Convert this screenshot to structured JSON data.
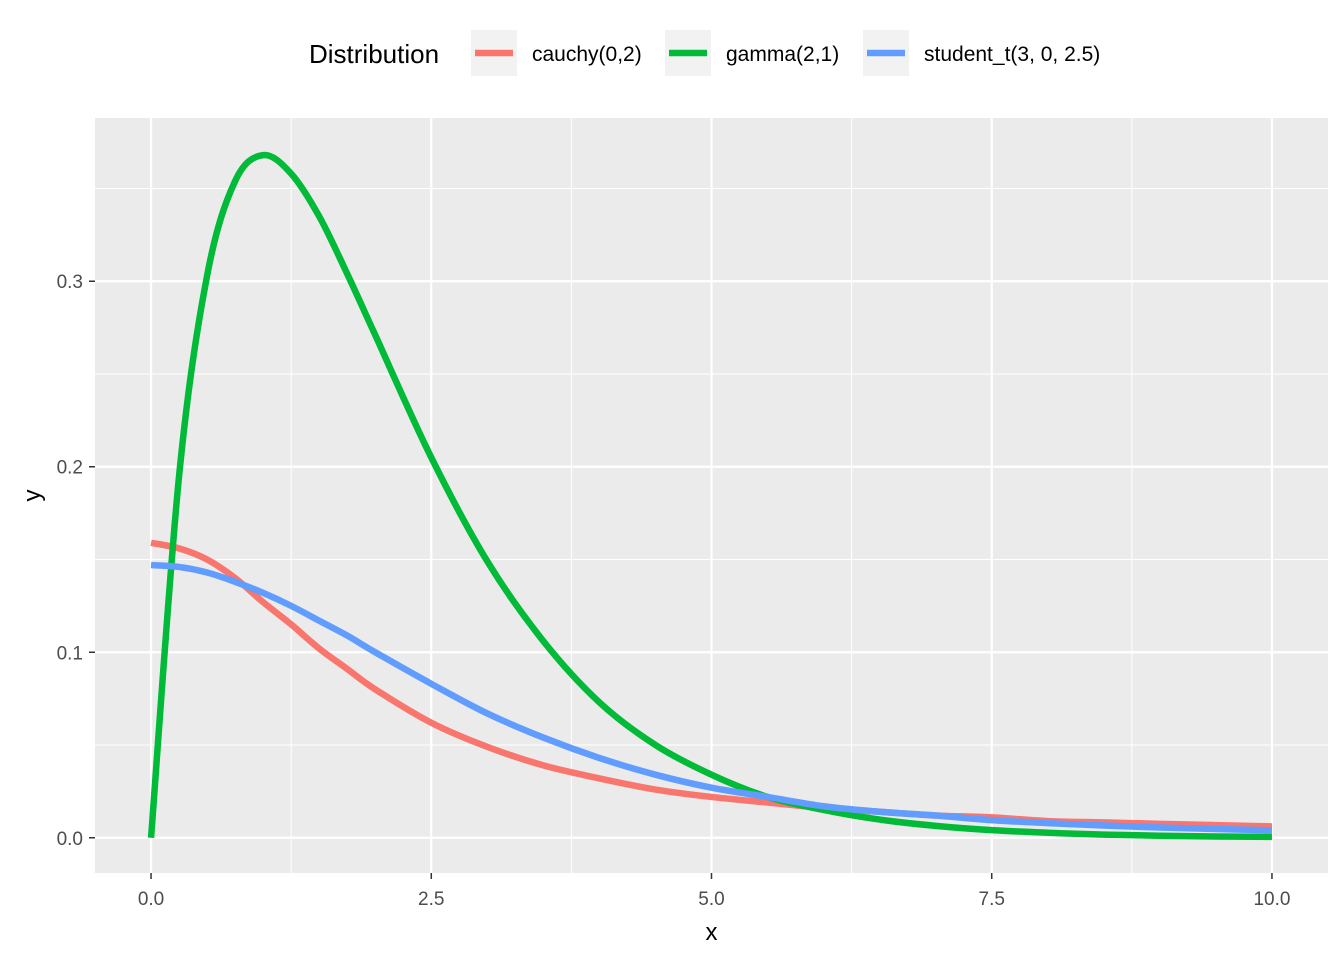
{
  "chart_data": {
    "type": "line",
    "title": "",
    "xlabel": "x",
    "ylabel": "y",
    "xlim": [
      -0.5,
      10.5
    ],
    "ylim": [
      -0.019,
      0.388
    ],
    "x_ticks": [
      0,
      2.5,
      5,
      7.5,
      10
    ],
    "x_tick_labels": [
      "0.0",
      "2.5",
      "5.0",
      "7.5",
      "10.0"
    ],
    "y_ticks": [
      0,
      0.1,
      0.2,
      0.3
    ],
    "y_tick_labels": [
      "0.0",
      "0.1",
      "0.2",
      "0.3"
    ],
    "grid": true,
    "legend": {
      "title": "Distribution",
      "position": "top"
    },
    "x": [
      0,
      0.25,
      0.5,
      0.75,
      1,
      1.25,
      1.5,
      1.75,
      2,
      2.5,
      3,
      3.5,
      4,
      4.5,
      5,
      5.5,
      6,
      6.5,
      7,
      7.5,
      8,
      8.5,
      9,
      9.5,
      10
    ],
    "series": [
      {
        "name": "cauchy(0,2)",
        "color": "#F8766D",
        "values": [
          0.159,
          0.156,
          0.15,
          0.14,
          0.127,
          0.115,
          0.102,
          0.091,
          0.08,
          0.062,
          0.049,
          0.039,
          0.032,
          0.026,
          0.022,
          0.019,
          0.016,
          0.014,
          0.012,
          0.011,
          0.009,
          0.0083,
          0.0075,
          0.0068,
          0.0061
        ]
      },
      {
        "name": "gamma(2,1)",
        "color": "#00BA38",
        "values": [
          0,
          0.195,
          0.303,
          0.354,
          0.368,
          0.358,
          0.335,
          0.304,
          0.271,
          0.205,
          0.149,
          0.106,
          0.073,
          0.05,
          0.034,
          0.022,
          0.015,
          0.0098,
          0.0064,
          0.0041,
          0.0027,
          0.0017,
          0.0011,
          0.0007,
          0.0005
        ]
      },
      {
        "name": "student_t(3, 0, 2.5)",
        "color": "#619CFF",
        "values": [
          0.147,
          0.146,
          0.143,
          0.138,
          0.132,
          0.125,
          0.117,
          0.109,
          0.1,
          0.083,
          0.067,
          0.054,
          0.043,
          0.034,
          0.027,
          0.022,
          0.017,
          0.014,
          0.012,
          0.0095,
          0.0079,
          0.0066,
          0.0055,
          0.0047,
          0.004
        ]
      }
    ]
  }
}
